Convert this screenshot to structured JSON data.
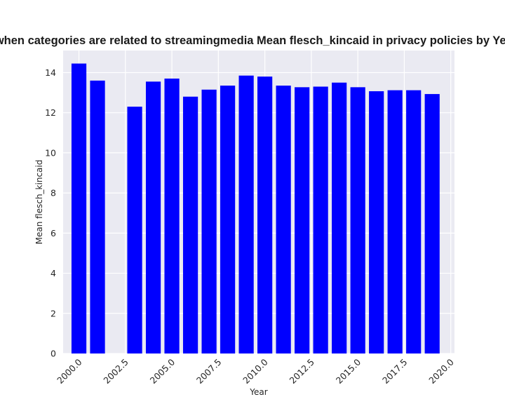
{
  "chart_data": {
    "type": "bar",
    "title": "when categories are related to streamingmedia Mean flesch_kincaid in privacy policies by Year",
    "xlabel": "Year",
    "ylabel": "Mean flesch_kincaid",
    "x": [
      2000,
      2001,
      2003,
      2004,
      2005,
      2006,
      2007,
      2008,
      2009,
      2010,
      2011,
      2012,
      2013,
      2014,
      2015,
      2016,
      2017,
      2018,
      2019
    ],
    "values": [
      14.45,
      13.6,
      12.3,
      13.55,
      13.7,
      12.8,
      13.15,
      13.35,
      13.85,
      13.8,
      13.35,
      13.27,
      13.3,
      13.5,
      13.27,
      13.07,
      13.12,
      13.12,
      12.93
    ],
    "xlim": [
      1999.15,
      2020.2
    ],
    "ylim": [
      0,
      15.1
    ],
    "xticks": [
      "2000.0",
      "2002.5",
      "2005.0",
      "2007.5",
      "2010.0",
      "2012.5",
      "2015.0",
      "2017.5",
      "2020.0"
    ],
    "yticks": [
      "0",
      "2",
      "4",
      "6",
      "8",
      "10",
      "12",
      "14"
    ],
    "bar_color": "#0000ff",
    "plot_background": "#eaeaf2",
    "grid_color": "#ffffff",
    "grid": true
  }
}
